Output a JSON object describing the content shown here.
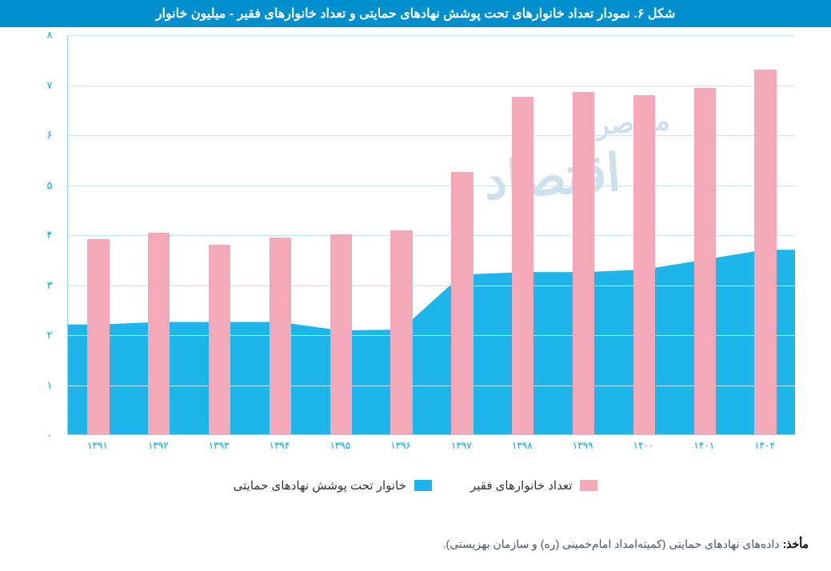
{
  "title": "شکل ۶. نمودار تعداد خانوارهای تحت پوشش نهادهای حمایتی و تعداد خانوارهای فقیر - میلیون خانوار",
  "title_bg": "#018fce",
  "title_color": "#ffffff",
  "title_fontsize": 16,
  "chart": {
    "type": "bar+area",
    "categories": [
      "۱۳۹۱",
      "۱۳۹۲",
      "۱۳۹۳",
      "۱۳۹۴",
      "۱۳۹۵",
      "۱۳۹۶",
      "۱۳۹۷",
      "۱۳۹۸",
      "۱۳۹۹",
      "۱۴۰۰",
      "۱۴۰۱",
      "۱۴۰۲"
    ],
    "bar_series": {
      "label": "تعداد خانوارهای فقیر",
      "color": "#f4a9b8",
      "values": [
        3.9,
        4.03,
        3.8,
        3.93,
        4.0,
        4.08,
        5.25,
        6.75,
        6.85,
        6.78,
        6.93,
        7.3
      ]
    },
    "area_series": {
      "label": "خانوار تحت پوشش نهادهای حمایتی",
      "color": "#1eb5ea",
      "values": [
        2.2,
        2.25,
        2.25,
        2.25,
        2.08,
        2.1,
        3.2,
        3.25,
        3.25,
        3.3,
        3.5,
        3.7
      ]
    },
    "ylim": [
      0,
      8
    ],
    "ytick_step": 1,
    "y_ticks": [
      "۰",
      "۱",
      "۲",
      "۳",
      "۴",
      "۵",
      "۶",
      "۷",
      "۸"
    ],
    "axis_color": "#8bd3ef",
    "grid_color": "#bfe7f6",
    "tick_label_color": "#0aa9e0",
    "tick_fontsize": 13,
    "bar_width_ratio": 0.36,
    "plot_bg": "#ffffff"
  },
  "legend": {
    "items": [
      {
        "label": "تعداد خانوارهای فقیر",
        "color": "#f4a9b8"
      },
      {
        "label": "خانوار تحت پوشش نهادهای حمایتی",
        "color": "#1eb5ea"
      }
    ],
    "fontsize": 15
  },
  "source_label": "مأخذ:",
  "source_text": "داده‌های نهادهای حمایتی (کمیته‌امداد امام‌خمینی (ره) و سازمان بهزیستی).",
  "watermark": "اقتصاد",
  "watermark_sub": "معاصر"
}
